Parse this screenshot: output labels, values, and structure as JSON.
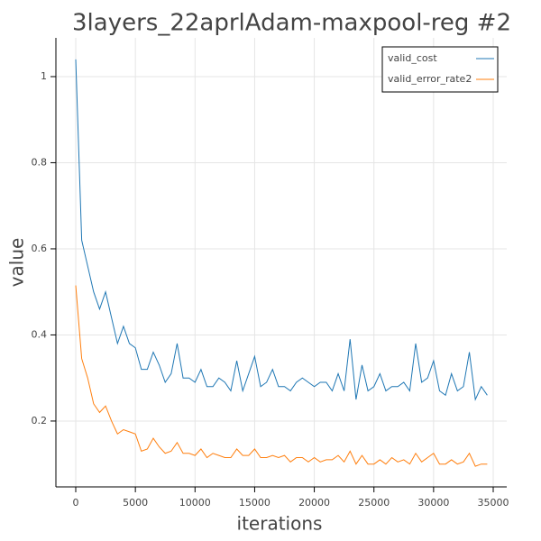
{
  "chart_data": {
    "type": "line",
    "title": "3layers_22aprlAdam-maxpool-reg #2",
    "x_label": "iterations",
    "y_label": "value",
    "x": [
      0,
      500,
      1000,
      1500,
      2000,
      2500,
      3000,
      3500,
      4000,
      4500,
      5000,
      5500,
      6000,
      6500,
      7000,
      7500,
      8000,
      8500,
      9000,
      9500,
      10000,
      10500,
      11000,
      11500,
      12000,
      12500,
      13000,
      13500,
      14000,
      14500,
      15000,
      15500,
      16000,
      16500,
      17000,
      17500,
      18000,
      18500,
      19000,
      19500,
      20000,
      20500,
      21000,
      21500,
      22000,
      22500,
      23000,
      23500,
      24000,
      24500,
      25000,
      25500,
      26000,
      26500,
      27000,
      27500,
      28000,
      28500,
      29000,
      29500,
      30000,
      30500,
      31000,
      31500,
      32000,
      32500,
      33000,
      33500,
      34000,
      34500
    ],
    "series": [
      {
        "name": "valid_cost",
        "color": "#1f77b4",
        "values": [
          1.04,
          0.62,
          0.56,
          0.5,
          0.46,
          0.5,
          0.44,
          0.38,
          0.42,
          0.38,
          0.37,
          0.32,
          0.32,
          0.36,
          0.33,
          0.29,
          0.31,
          0.38,
          0.3,
          0.3,
          0.29,
          0.32,
          0.28,
          0.28,
          0.3,
          0.29,
          0.27,
          0.34,
          0.27,
          0.31,
          0.35,
          0.28,
          0.29,
          0.32,
          0.28,
          0.28,
          0.27,
          0.29,
          0.3,
          0.29,
          0.28,
          0.29,
          0.29,
          0.27,
          0.31,
          0.27,
          0.39,
          0.25,
          0.33,
          0.27,
          0.28,
          0.31,
          0.27,
          0.28,
          0.28,
          0.29,
          0.27,
          0.38,
          0.29,
          0.3,
          0.34,
          0.27,
          0.26,
          0.31,
          0.27,
          0.28,
          0.36,
          0.25,
          0.28,
          0.26
        ]
      },
      {
        "name": "valid_error_rate2",
        "color": "#ff7f0e",
        "values": [
          0.515,
          0.345,
          0.3,
          0.24,
          0.22,
          0.235,
          0.2,
          0.17,
          0.18,
          0.175,
          0.17,
          0.13,
          0.135,
          0.16,
          0.14,
          0.125,
          0.13,
          0.15,
          0.125,
          0.125,
          0.12,
          0.135,
          0.115,
          0.125,
          0.12,
          0.115,
          0.115,
          0.135,
          0.12,
          0.12,
          0.135,
          0.115,
          0.115,
          0.12,
          0.115,
          0.12,
          0.105,
          0.115,
          0.115,
          0.105,
          0.115,
          0.105,
          0.11,
          0.11,
          0.12,
          0.105,
          0.13,
          0.1,
          0.12,
          0.1,
          0.1,
          0.11,
          0.1,
          0.115,
          0.105,
          0.11,
          0.1,
          0.125,
          0.105,
          0.115,
          0.125,
          0.1,
          0.1,
          0.11,
          0.1,
          0.105,
          0.125,
          0.095,
          0.1,
          0.1
        ]
      }
    ],
    "xlim": [
      -1663,
      36133
    ],
    "xticks": [
      0,
      5000,
      10000,
      15000,
      20000,
      25000,
      30000,
      35000
    ],
    "ylim": [
      0.047,
      1.09
    ],
    "yticks": [
      0.2,
      0.4,
      0.6,
      0.8,
      1
    ],
    "grid": true,
    "legend": "top-right"
  }
}
